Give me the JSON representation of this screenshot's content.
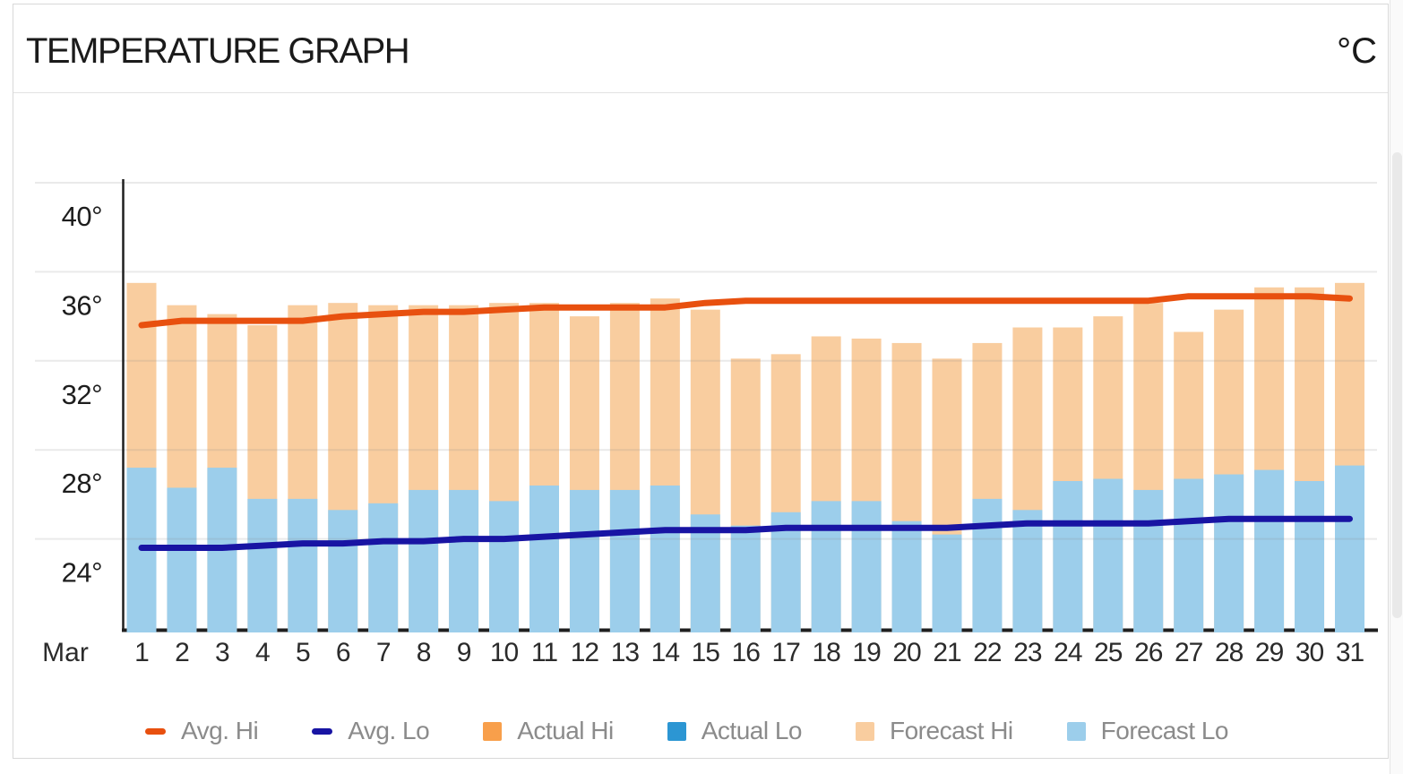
{
  "header": {
    "title": "TEMPERATURE GRAPH",
    "unit": "°C"
  },
  "x_axis": {
    "month_label": "Mar",
    "days": [
      1,
      2,
      3,
      4,
      5,
      6,
      7,
      8,
      9,
      10,
      11,
      12,
      13,
      14,
      15,
      16,
      17,
      18,
      19,
      20,
      21,
      22,
      23,
      24,
      25,
      26,
      27,
      28,
      29,
      30,
      31
    ]
  },
  "y_axis": {
    "tick_values": [
      40,
      36,
      32,
      28,
      24
    ],
    "tick_labels": [
      "40°",
      "36°",
      "32°",
      "28°",
      "24°"
    ]
  },
  "legend": [
    {
      "label": "Avg. Hi",
      "swatch": "dash",
      "color": "#e8500f"
    },
    {
      "label": "Avg. Lo",
      "swatch": "dash",
      "color": "#1814a3"
    },
    {
      "label": "Actual Hi",
      "swatch": "square",
      "color": "#f89f4b"
    },
    {
      "label": "Actual Lo",
      "swatch": "square",
      "color": "#2c96d3"
    },
    {
      "label": "Forecast Hi",
      "swatch": "square",
      "color": "#f9cd9f"
    },
    {
      "label": "Forecast Lo",
      "swatch": "square",
      "color": "#9cceeb"
    }
  ],
  "chart_data": {
    "type": "bar",
    "title": "TEMPERATURE GRAPH",
    "unit": "°C",
    "month": "Mar",
    "x": [
      1,
      2,
      3,
      4,
      5,
      6,
      7,
      8,
      9,
      10,
      11,
      12,
      13,
      14,
      15,
      16,
      17,
      18,
      19,
      20,
      21,
      22,
      23,
      24,
      25,
      26,
      27,
      28,
      29,
      30,
      31
    ],
    "ylim": [
      20,
      41.5
    ],
    "yticks": [
      40,
      36,
      32,
      28,
      24
    ],
    "grid": true,
    "legend_position": "bottom",
    "series": [
      {
        "name": "Avg. Hi",
        "type": "line",
        "color": "#e8500f",
        "values": [
          33.6,
          33.8,
          33.8,
          33.8,
          33.8,
          34.0,
          34.1,
          34.2,
          34.2,
          34.3,
          34.4,
          34.4,
          34.4,
          34.4,
          34.6,
          34.7,
          34.7,
          34.7,
          34.7,
          34.7,
          34.7,
          34.7,
          34.7,
          34.7,
          34.7,
          34.7,
          34.9,
          34.9,
          34.9,
          34.9,
          34.8
        ]
      },
      {
        "name": "Avg. Lo",
        "type": "line",
        "color": "#1814a3",
        "values": [
          23.6,
          23.6,
          23.6,
          23.7,
          23.8,
          23.8,
          23.9,
          23.9,
          24.0,
          24.0,
          24.1,
          24.2,
          24.3,
          24.4,
          24.4,
          24.4,
          24.5,
          24.5,
          24.5,
          24.5,
          24.5,
          24.6,
          24.7,
          24.7,
          24.7,
          24.7,
          24.8,
          24.9,
          24.9,
          24.9,
          24.9
        ]
      },
      {
        "name": "Actual Hi",
        "type": "bar",
        "color": "#f89f4b",
        "values": []
      },
      {
        "name": "Actual Lo",
        "type": "bar",
        "color": "#2c96d3",
        "values": []
      },
      {
        "name": "Forecast Hi",
        "type": "bar",
        "color": "#f9cd9f",
        "values": [
          35.5,
          34.5,
          34.1,
          33.6,
          34.5,
          34.6,
          34.5,
          34.5,
          34.5,
          34.6,
          34.6,
          34.0,
          34.6,
          34.8,
          34.3,
          32.1,
          32.3,
          33.1,
          33.0,
          32.8,
          32.1,
          32.8,
          33.5,
          33.5,
          34.0,
          34.6,
          33.3,
          34.3,
          35.3,
          35.3,
          35.5
        ]
      },
      {
        "name": "Forecast Lo",
        "type": "bar",
        "color": "#9cceeb",
        "values": [
          27.2,
          26.3,
          27.2,
          25.8,
          25.8,
          25.3,
          25.6,
          26.2,
          26.2,
          25.7,
          26.4,
          26.2,
          26.2,
          26.4,
          25.1,
          24.6,
          25.2,
          25.7,
          25.7,
          24.8,
          24.2,
          25.8,
          25.3,
          26.6,
          26.7,
          26.2,
          26.7,
          26.9,
          27.1,
          26.6,
          27.3
        ]
      }
    ]
  }
}
